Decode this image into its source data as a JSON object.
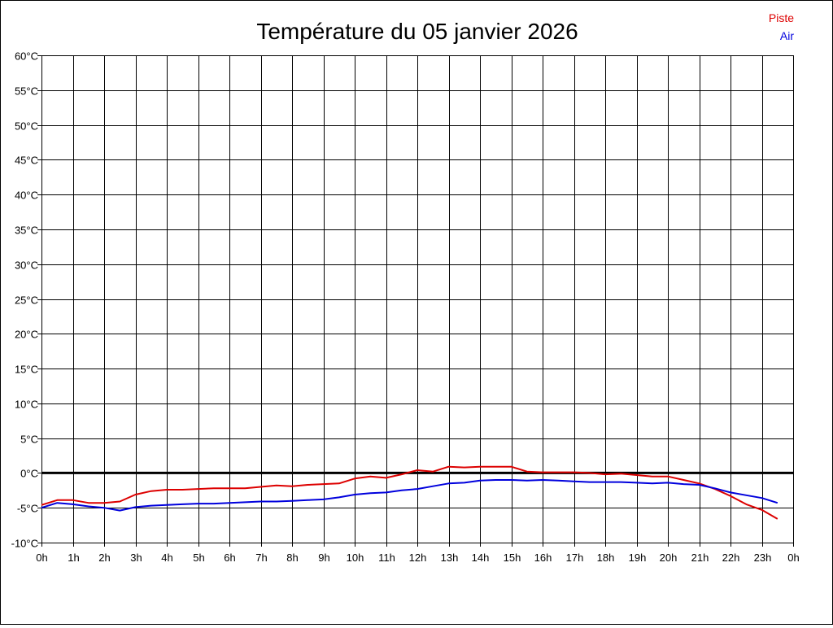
{
  "chart_data": {
    "type": "line",
    "title": "Température du 05 janvier 2026",
    "xlabel": "",
    "ylabel": "",
    "x_ticks": [
      "0h",
      "1h",
      "2h",
      "3h",
      "4h",
      "5h",
      "6h",
      "7h",
      "8h",
      "9h",
      "10h",
      "11h",
      "12h",
      "13h",
      "14h",
      "15h",
      "16h",
      "17h",
      "18h",
      "19h",
      "20h",
      "21h",
      "22h",
      "23h",
      "0h"
    ],
    "y_ticks": [
      "60°C",
      "55°C",
      "50°C",
      "45°C",
      "40°C",
      "35°C",
      "30°C",
      "25°C",
      "20°C",
      "15°C",
      "10°C",
      "5°C",
      "0°C",
      "-5°C",
      "-10°C"
    ],
    "xlim": [
      0,
      24
    ],
    "ylim": [
      -10,
      60
    ],
    "grid": true,
    "zero_line": true,
    "legend": "top-right",
    "series": [
      {
        "name": "Piste",
        "color": "#dd0000",
        "x": [
          0,
          0.5,
          1,
          1.5,
          2,
          2.5,
          3,
          3.5,
          4,
          4.5,
          5,
          5.5,
          6,
          6.5,
          7,
          7.5,
          8,
          8.5,
          9,
          9.5,
          10,
          10.5,
          11,
          11.5,
          12,
          12.5,
          13,
          13.5,
          14,
          14.5,
          15,
          15.5,
          16,
          16.5,
          17,
          17.5,
          18,
          18.5,
          19,
          19.5,
          20,
          20.5,
          21,
          21.5,
          22,
          22.5,
          23,
          23.5
        ],
        "values": [
          -4.6,
          -3.9,
          -3.9,
          -4.3,
          -4.3,
          -4.1,
          -3.1,
          -2.6,
          -2.4,
          -2.4,
          -2.3,
          -2.2,
          -2.2,
          -2.2,
          -2.0,
          -1.8,
          -1.9,
          -1.7,
          -1.6,
          -1.5,
          -0.8,
          -0.5,
          -0.7,
          -0.2,
          0.4,
          0.2,
          0.9,
          0.8,
          0.9,
          0.9,
          0.9,
          0.2,
          0.1,
          0.1,
          0.1,
          0.0,
          -0.2,
          -0.1,
          -0.3,
          -0.5,
          -0.5,
          -1.0,
          -1.5,
          -2.3,
          -3.3,
          -4.5,
          -5.3,
          -6.6
        ]
      },
      {
        "name": "Air",
        "color": "#0000dd",
        "x": [
          0,
          0.5,
          1,
          1.5,
          2,
          2.5,
          3,
          3.5,
          4,
          4.5,
          5,
          5.5,
          6,
          6.5,
          7,
          7.5,
          8,
          8.5,
          9,
          9.5,
          10,
          10.5,
          11,
          11.5,
          12,
          12.5,
          13,
          13.5,
          14,
          14.5,
          15,
          15.5,
          16,
          16.5,
          17,
          17.5,
          18,
          18.5,
          19,
          19.5,
          20,
          20.5,
          21,
          21.5,
          22,
          22.5,
          23,
          23.5
        ],
        "values": [
          -5.0,
          -4.3,
          -4.5,
          -4.8,
          -5.0,
          -5.4,
          -4.9,
          -4.7,
          -4.6,
          -4.5,
          -4.4,
          -4.4,
          -4.3,
          -4.2,
          -4.1,
          -4.1,
          -4.0,
          -3.9,
          -3.8,
          -3.5,
          -3.1,
          -2.9,
          -2.8,
          -2.5,
          -2.3,
          -1.9,
          -1.5,
          -1.4,
          -1.1,
          -1.0,
          -1.0,
          -1.1,
          -1.0,
          -1.1,
          -1.2,
          -1.3,
          -1.3,
          -1.3,
          -1.4,
          -1.5,
          -1.4,
          -1.6,
          -1.7,
          -2.2,
          -2.8,
          -3.2,
          -3.6,
          -4.3
        ]
      }
    ]
  }
}
